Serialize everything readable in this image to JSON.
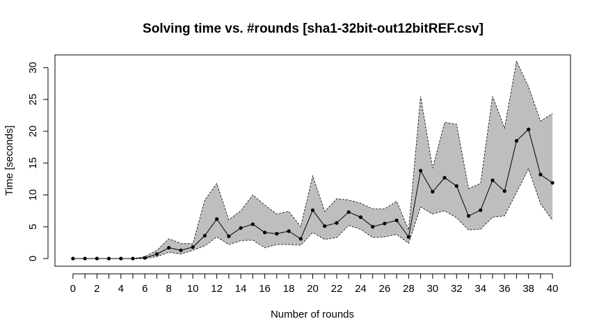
{
  "chart_data": {
    "type": "line",
    "title": "Solving time vs. #rounds [sha1-32bit-out12bitREF.csv]",
    "xlabel": "Number of rounds",
    "ylabel": "Time [seconds]",
    "xlim": [
      -1.5,
      41.5
    ],
    "ylim": [
      -1.2,
      32
    ],
    "x_ticks": [
      0,
      1,
      2,
      3,
      4,
      5,
      6,
      7,
      8,
      9,
      10,
      11,
      12,
      13,
      14,
      15,
      16,
      17,
      18,
      19,
      20,
      21,
      22,
      23,
      24,
      25,
      26,
      27,
      28,
      29,
      30,
      31,
      32,
      33,
      34,
      35,
      36,
      37,
      38,
      39,
      40
    ],
    "x_tick_labels": [
      "0",
      "",
      "2",
      "",
      "4",
      "",
      "6",
      "",
      "8",
      "",
      "10",
      "",
      "12",
      "",
      "14",
      "",
      "16",
      "",
      "18",
      "",
      "20",
      "",
      "22",
      "",
      "24",
      "",
      "26",
      "",
      "28",
      "",
      "30",
      "",
      "32",
      "",
      "34",
      "",
      "36",
      "",
      "38",
      "",
      "40"
    ],
    "y_ticks": [
      0,
      5,
      10,
      15,
      20,
      25,
      30
    ],
    "y_tick_labels": [
      "0",
      "5",
      "10",
      "15",
      "20",
      "25",
      "30"
    ],
    "grid": false,
    "legend": "none",
    "colors": {
      "band": "#bebebe",
      "line": "#000000",
      "band_edge": "#000000"
    },
    "series": [
      {
        "role": "mean",
        "x": [
          0,
          1,
          2,
          3,
          4,
          5,
          6,
          7,
          8,
          9,
          10,
          11,
          12,
          13,
          14,
          15,
          16,
          17,
          18,
          19,
          20,
          21,
          22,
          23,
          24,
          25,
          26,
          27,
          28,
          29,
          30,
          31,
          32,
          33,
          34,
          35,
          36,
          37,
          38,
          39,
          40
        ],
        "values": [
          0,
          0,
          0,
          0,
          0,
          0,
          0.1,
          0.7,
          1.7,
          1.3,
          1.8,
          3.6,
          6.2,
          3.5,
          4.8,
          5.4,
          4.1,
          3.9,
          4.3,
          3.1,
          7.6,
          5.1,
          5.6,
          7.3,
          6.5,
          5.0,
          5.5,
          6.0,
          3.4,
          13.8,
          10.5,
          12.7,
          11.4,
          6.7,
          7.6,
          12.3,
          10.6,
          18.5,
          20.3,
          13.2,
          11.9
        ]
      },
      {
        "role": "upper",
        "x": [
          0,
          1,
          2,
          3,
          4,
          5,
          6,
          7,
          8,
          9,
          10,
          11,
          12,
          13,
          14,
          15,
          16,
          17,
          18,
          19,
          20,
          21,
          22,
          23,
          24,
          25,
          26,
          27,
          28,
          29,
          30,
          31,
          32,
          33,
          34,
          35,
          36,
          37,
          38,
          39,
          40
        ],
        "values": [
          0,
          0,
          0,
          0,
          0,
          0,
          0.3,
          1.3,
          3.1,
          2.4,
          2.3,
          9.2,
          11.8,
          6.1,
          7.5,
          10.0,
          8.4,
          7.0,
          7.4,
          5.0,
          13.0,
          7.4,
          9.4,
          9.2,
          8.7,
          7.8,
          7.8,
          9.0,
          4.5,
          25.5,
          14.2,
          21.4,
          21.1,
          11.0,
          11.8,
          25.5,
          20.5,
          31.0,
          27.0,
          21.6,
          22.8
        ]
      },
      {
        "role": "lower",
        "x": [
          0,
          1,
          2,
          3,
          4,
          5,
          6,
          7,
          8,
          9,
          10,
          11,
          12,
          13,
          14,
          15,
          16,
          17,
          18,
          19,
          20,
          21,
          22,
          23,
          24,
          25,
          26,
          27,
          28,
          29,
          30,
          31,
          32,
          33,
          34,
          35,
          36,
          37,
          38,
          39,
          40
        ],
        "values": [
          0,
          0,
          0,
          0,
          0,
          0,
          0,
          0.3,
          1.0,
          0.7,
          1.3,
          2.0,
          3.4,
          2.2,
          2.8,
          2.9,
          1.7,
          2.2,
          2.2,
          2.1,
          4.1,
          3.0,
          3.3,
          5.2,
          4.6,
          3.3,
          3.4,
          3.8,
          2.4,
          8.1,
          7.0,
          7.5,
          6.4,
          4.5,
          4.6,
          6.5,
          6.7,
          10.4,
          14.1,
          8.6,
          6.0
        ]
      }
    ]
  }
}
